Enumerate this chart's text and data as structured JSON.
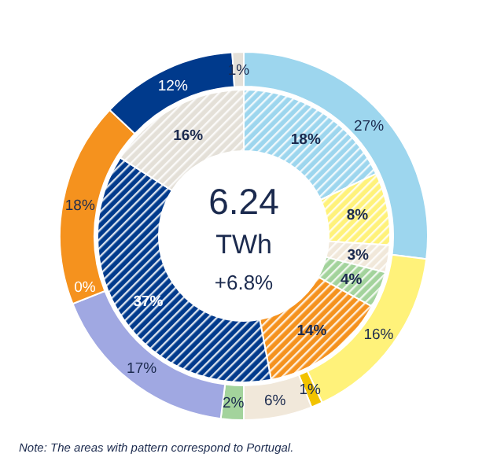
{
  "chart_data": [
    {
      "type": "donut",
      "categories": [
        null,
        null,
        null,
        null,
        null,
        null,
        null,
        null,
        null,
        null
      ],
      "values": [
        27,
        16,
        1,
        6,
        2,
        17,
        0,
        18,
        12,
        1
      ],
      "colors": [
        "#9dd6ee",
        "#fff27a",
        "#f2c300",
        "#f1e8da",
        "#a3d39c",
        "#a0a8e2",
        "#8e7cc3",
        "#f5921e",
        "#003a8c",
        "#e4e0d8"
      ],
      "value_labels": [
        "27%",
        "16%",
        "1%",
        "6%",
        "2%",
        "17%",
        "0%",
        "18%",
        "12%",
        "1%"
      ],
      "annotations": [
        "Note: The  areas  with pattern correspond  to Portugal."
      ]
    },
    {
      "type": "donut",
      "categories": [
        null,
        null,
        null,
        null,
        null,
        null,
        null
      ],
      "values": [
        18,
        8,
        3,
        4,
        14,
        37,
        16
      ],
      "colors": [
        "#9dd6ee",
        "#fff27a",
        "#f1e8da",
        "#a3d39c",
        "#f5921e",
        "#003a8c",
        "#e4e0d8"
      ],
      "value_labels": [
        "18%",
        "8%",
        "3%",
        "4%",
        "14%",
        "37%",
        "16%"
      ],
      "title": "6.24",
      "subtitle": "TWh",
      "annotations": [
        "+6.8%"
      ]
    }
  ]
}
